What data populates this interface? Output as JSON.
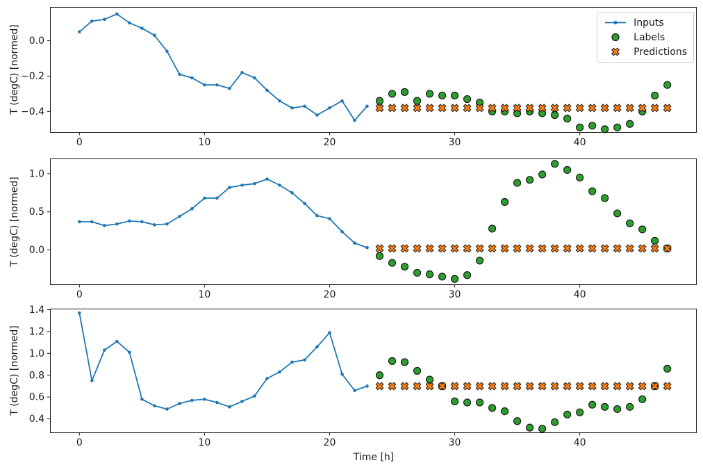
{
  "figure": {
    "xlabel": "Time [h]",
    "background": "#ffffff",
    "axis_color": "#1a1a1a",
    "legend": {
      "position": "upper right of first subplot",
      "entries": [
        {
          "label": "Inputs",
          "marker": "line-dot",
          "color": "#1f77b4"
        },
        {
          "label": "Labels",
          "marker": "circle",
          "color": "#2ca02c"
        },
        {
          "label": "Predictions",
          "marker": "x",
          "color": "#ff7f0e"
        }
      ],
      "marker_edge_color": "#1a1a1a"
    }
  },
  "chart_data": [
    {
      "type": "line",
      "ylabel": "T (degC) [normed]",
      "xlabel": "",
      "grid": false,
      "xlim": [
        -2.35,
        49.35
      ],
      "ylim": [
        -0.52,
        0.19
      ],
      "xticks": [
        {
          "v": 0,
          "label": "0"
        },
        {
          "v": 10,
          "label": "10"
        },
        {
          "v": 20,
          "label": "20"
        },
        {
          "v": 30,
          "label": "30"
        },
        {
          "v": 40,
          "label": "40"
        }
      ],
      "yticks": [
        {
          "v": 0.0,
          "label": "0.0"
        },
        {
          "v": -0.2,
          "label": "−0.2"
        },
        {
          "v": -0.4,
          "label": "−0.4"
        }
      ],
      "series": [
        {
          "name": "Inputs",
          "type": "line",
          "color": "#1f77b4",
          "x": [
            0,
            1,
            2,
            3,
            4,
            5,
            6,
            7,
            8,
            9,
            10,
            11,
            12,
            13,
            14,
            15,
            16,
            17,
            18,
            19,
            20,
            21,
            22,
            23
          ],
          "values": [
            0.05,
            0.11,
            0.12,
            0.15,
            0.1,
            0.07,
            0.03,
            -0.06,
            -0.19,
            -0.21,
            -0.25,
            -0.25,
            -0.27,
            -0.18,
            -0.21,
            -0.28,
            -0.34,
            -0.38,
            -0.37,
            -0.42,
            -0.38,
            -0.34,
            -0.45,
            -0.37
          ]
        },
        {
          "name": "Labels",
          "type": "scatter-circle",
          "color": "#2ca02c",
          "x": [
            24,
            25,
            26,
            27,
            28,
            29,
            30,
            31,
            32,
            33,
            34,
            35,
            36,
            37,
            38,
            39,
            40,
            41,
            42,
            43,
            44,
            45,
            46,
            47
          ],
          "values": [
            -0.34,
            -0.3,
            -0.29,
            -0.34,
            -0.3,
            -0.31,
            -0.31,
            -0.33,
            -0.35,
            -0.4,
            -0.4,
            -0.41,
            -0.4,
            -0.41,
            -0.42,
            -0.44,
            -0.49,
            -0.48,
            -0.5,
            -0.49,
            -0.47,
            -0.4,
            -0.31,
            -0.25
          ]
        },
        {
          "name": "Predictions",
          "type": "scatter-x",
          "color": "#ff7f0e",
          "x": [
            24,
            25,
            26,
            27,
            28,
            29,
            30,
            31,
            32,
            33,
            34,
            35,
            36,
            37,
            38,
            39,
            40,
            41,
            42,
            43,
            44,
            45,
            46,
            47
          ],
          "values": [
            -0.38,
            -0.38,
            -0.38,
            -0.38,
            -0.38,
            -0.38,
            -0.38,
            -0.38,
            -0.38,
            -0.38,
            -0.38,
            -0.38,
            -0.38,
            -0.38,
            -0.38,
            -0.38,
            -0.38,
            -0.38,
            -0.38,
            -0.38,
            -0.38,
            -0.38,
            -0.38,
            -0.38
          ]
        }
      ]
    },
    {
      "type": "line",
      "ylabel": "T (degC) [normed]",
      "xlabel": "",
      "grid": false,
      "xlim": [
        -2.35,
        49.35
      ],
      "ylim": [
        -0.46,
        1.2
      ],
      "xticks": [
        {
          "v": 0,
          "label": "0"
        },
        {
          "v": 10,
          "label": "10"
        },
        {
          "v": 20,
          "label": "20"
        },
        {
          "v": 30,
          "label": "30"
        },
        {
          "v": 40,
          "label": "40"
        }
      ],
      "yticks": [
        {
          "v": 1.0,
          "label": "1.0"
        },
        {
          "v": 0.5,
          "label": "0.5"
        },
        {
          "v": 0.0,
          "label": "0.0"
        }
      ],
      "series": [
        {
          "name": "Inputs",
          "type": "line",
          "color": "#1f77b4",
          "x": [
            0,
            1,
            2,
            3,
            4,
            5,
            6,
            7,
            8,
            9,
            10,
            11,
            12,
            13,
            14,
            15,
            16,
            17,
            18,
            19,
            20,
            21,
            22,
            23
          ],
          "values": [
            0.37,
            0.37,
            0.32,
            0.34,
            0.38,
            0.37,
            0.33,
            0.34,
            0.44,
            0.54,
            0.68,
            0.68,
            0.82,
            0.85,
            0.87,
            0.93,
            0.85,
            0.75,
            0.61,
            0.45,
            0.41,
            0.24,
            0.09,
            0.03
          ]
        },
        {
          "name": "Labels",
          "type": "scatter-circle",
          "color": "#2ca02c",
          "x": [
            24,
            25,
            26,
            27,
            28,
            29,
            30,
            31,
            32,
            33,
            34,
            35,
            36,
            37,
            38,
            39,
            40,
            41,
            42,
            43,
            44,
            45,
            46,
            47
          ],
          "values": [
            -0.08,
            -0.17,
            -0.22,
            -0.3,
            -0.32,
            -0.35,
            -0.38,
            -0.33,
            -0.14,
            0.28,
            0.63,
            0.88,
            0.92,
            0.99,
            1.13,
            1.05,
            0.95,
            0.77,
            0.68,
            0.48,
            0.35,
            0.27,
            0.12,
            0.02
          ]
        },
        {
          "name": "Predictions",
          "type": "scatter-x",
          "color": "#ff7f0e",
          "x": [
            24,
            25,
            26,
            27,
            28,
            29,
            30,
            31,
            32,
            33,
            34,
            35,
            36,
            37,
            38,
            39,
            40,
            41,
            42,
            43,
            44,
            45,
            46,
            47
          ],
          "values": [
            0.02,
            0.02,
            0.02,
            0.02,
            0.02,
            0.02,
            0.02,
            0.02,
            0.02,
            0.02,
            0.02,
            0.02,
            0.02,
            0.02,
            0.02,
            0.02,
            0.02,
            0.02,
            0.02,
            0.02,
            0.02,
            0.02,
            0.02,
            0.02
          ]
        }
      ]
    },
    {
      "type": "line",
      "ylabel": "T (degC) [normed]",
      "xlabel": "Time [h]",
      "grid": false,
      "xlim": [
        -2.35,
        49.35
      ],
      "ylim": [
        0.27,
        1.41
      ],
      "xticks": [
        {
          "v": 0,
          "label": "0"
        },
        {
          "v": 10,
          "label": "10"
        },
        {
          "v": 20,
          "label": "20"
        },
        {
          "v": 30,
          "label": "30"
        },
        {
          "v": 40,
          "label": "40"
        }
      ],
      "yticks": [
        {
          "v": 1.4,
          "label": "1.4"
        },
        {
          "v": 1.2,
          "label": "1.2"
        },
        {
          "v": 1.0,
          "label": "1.0"
        },
        {
          "v": 0.8,
          "label": "0.8"
        },
        {
          "v": 0.6,
          "label": "0.6"
        },
        {
          "v": 0.4,
          "label": "0.4"
        }
      ],
      "series": [
        {
          "name": "Inputs",
          "type": "line",
          "color": "#1f77b4",
          "x": [
            0,
            1,
            2,
            3,
            4,
            5,
            6,
            7,
            8,
            9,
            10,
            11,
            12,
            13,
            14,
            15,
            16,
            17,
            18,
            19,
            20,
            21,
            22,
            23
          ],
          "values": [
            1.37,
            0.75,
            1.03,
            1.11,
            1.01,
            0.58,
            0.52,
            0.49,
            0.54,
            0.57,
            0.58,
            0.55,
            0.51,
            0.56,
            0.61,
            0.77,
            0.83,
            0.92,
            0.94,
            1.06,
            1.19,
            0.81,
            0.66,
            0.7
          ]
        },
        {
          "name": "Labels",
          "type": "scatter-circle",
          "color": "#2ca02c",
          "x": [
            24,
            25,
            26,
            27,
            28,
            29,
            30,
            31,
            32,
            33,
            34,
            35,
            36,
            37,
            38,
            39,
            40,
            41,
            42,
            43,
            44,
            45,
            46,
            47
          ],
          "values": [
            0.8,
            0.93,
            0.92,
            0.84,
            0.76,
            0.7,
            0.56,
            0.55,
            0.55,
            0.5,
            0.47,
            0.38,
            0.32,
            0.31,
            0.37,
            0.44,
            0.46,
            0.53,
            0.51,
            0.49,
            0.51,
            0.58,
            0.7,
            0.86
          ]
        },
        {
          "name": "Predictions",
          "type": "scatter-x",
          "color": "#ff7f0e",
          "x": [
            24,
            25,
            26,
            27,
            28,
            29,
            30,
            31,
            32,
            33,
            34,
            35,
            36,
            37,
            38,
            39,
            40,
            41,
            42,
            43,
            44,
            45,
            46,
            47
          ],
          "values": [
            0.7,
            0.7,
            0.7,
            0.7,
            0.7,
            0.7,
            0.7,
            0.7,
            0.7,
            0.7,
            0.7,
            0.7,
            0.7,
            0.7,
            0.7,
            0.7,
            0.7,
            0.7,
            0.7,
            0.7,
            0.7,
            0.7,
            0.7,
            0.7
          ]
        }
      ]
    }
  ]
}
